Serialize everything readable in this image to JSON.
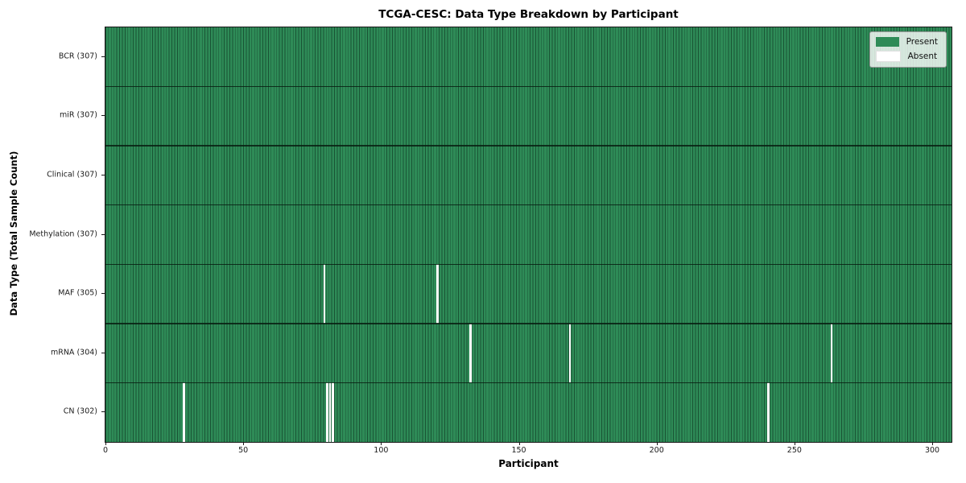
{
  "chart_data": {
    "type": "heatmap",
    "title": "TCGA-CESC: Data Type Breakdown by Participant",
    "xlabel": "Participant",
    "ylabel": "Data Type (Total Sample Count)",
    "xlim": [
      0,
      307
    ],
    "n_participants": 307,
    "x_ticks": [
      0,
      50,
      100,
      150,
      200,
      250,
      300
    ],
    "grid": "cell-edges-on",
    "legend_position": "upper right",
    "rows": [
      {
        "name": "BCR",
        "label": "BCR (307)",
        "total_present": 307,
        "absent_participants": []
      },
      {
        "name": "miR",
        "label": "miR (307)",
        "total_present": 307,
        "absent_participants": []
      },
      {
        "name": "Clinical",
        "label": "Clinical (307)",
        "total_present": 307,
        "absent_participants": []
      },
      {
        "name": "Methylation",
        "label": "Methylation (307)",
        "total_present": 307,
        "absent_participants": []
      },
      {
        "name": "MAF",
        "label": "MAF (305)",
        "total_present": 305,
        "absent_participants": [
          79,
          120
        ]
      },
      {
        "name": "mRNA",
        "label": "mRNA (304)",
        "total_present": 304,
        "absent_participants": [
          132,
          168,
          263
        ]
      },
      {
        "name": "CN",
        "label": "CN (302)",
        "total_present": 302,
        "absent_participants": [
          28,
          80,
          81,
          82,
          240
        ]
      }
    ],
    "legend": [
      {
        "label": "Present",
        "color": "#2e8b57"
      },
      {
        "label": "Absent",
        "color": "#ffffff"
      }
    ],
    "colors": {
      "present": "#2e8b57",
      "absent": "#ffffff",
      "cell_edge": "rgba(8,38,24,0.55)",
      "row_divider": "rgba(8,30,18,0.85)",
      "spine": "#1a1a1a"
    }
  }
}
